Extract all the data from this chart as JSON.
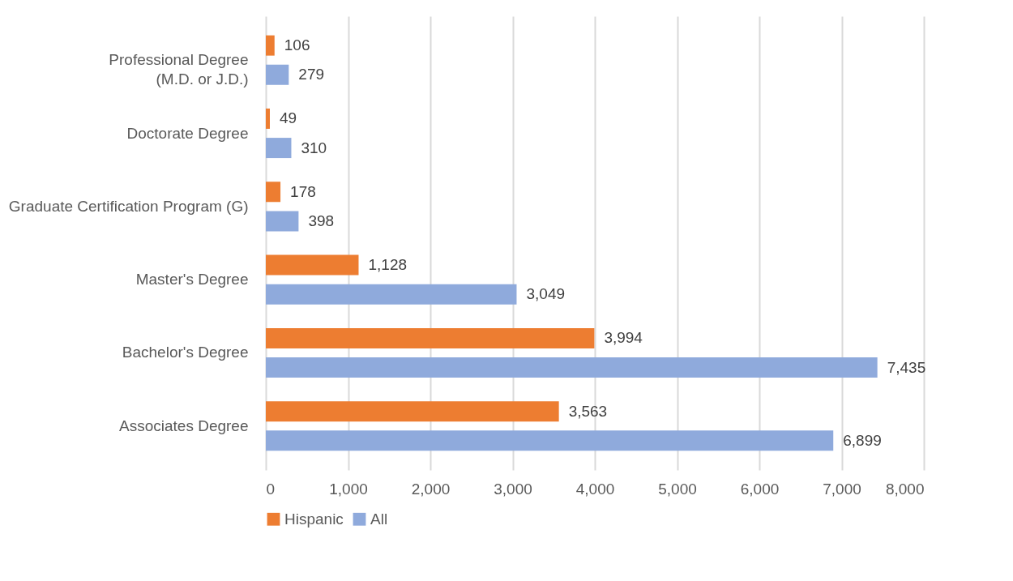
{
  "chart_data": {
    "type": "bar",
    "orientation": "horizontal",
    "categories": [
      "Professional Degree\n(M.D. or J.D.)",
      "Doctorate Degree",
      "Graduate Certification Program (G)",
      "Master's Degree",
      "Bachelor's Degree",
      "Associates Degree"
    ],
    "series": [
      {
        "name": "Hispanic",
        "color": "#ed7d31",
        "values": [
          106,
          49,
          178,
          1128,
          3994,
          3563
        ],
        "value_labels": [
          "106",
          "49",
          "178",
          "1,128",
          "3,994",
          "3,563"
        ]
      },
      {
        "name": "All",
        "color": "#8faadc",
        "values": [
          279,
          310,
          398,
          3049,
          7435,
          6899
        ],
        "value_labels": [
          "279",
          "310",
          "398",
          "3,049",
          "7,435",
          "6,899"
        ]
      }
    ],
    "xlim": [
      0,
      8000
    ],
    "xticks": [
      0,
      {
        "value": 1000,
        "label": "1,000"
      },
      {
        "value": 2000,
        "label": "2,000"
      },
      {
        "value": 3000,
        "label": "3,000"
      },
      {
        "value": 4000,
        "label": "4,000"
      },
      {
        "value": 5000,
        "label": "5,000"
      },
      {
        "value": 6000,
        "label": "6,000"
      },
      {
        "value": 7000,
        "label": "7,000"
      },
      {
        "value": 8000,
        "label": "8,000"
      }
    ],
    "grid": "x",
    "legend": "bottom"
  }
}
